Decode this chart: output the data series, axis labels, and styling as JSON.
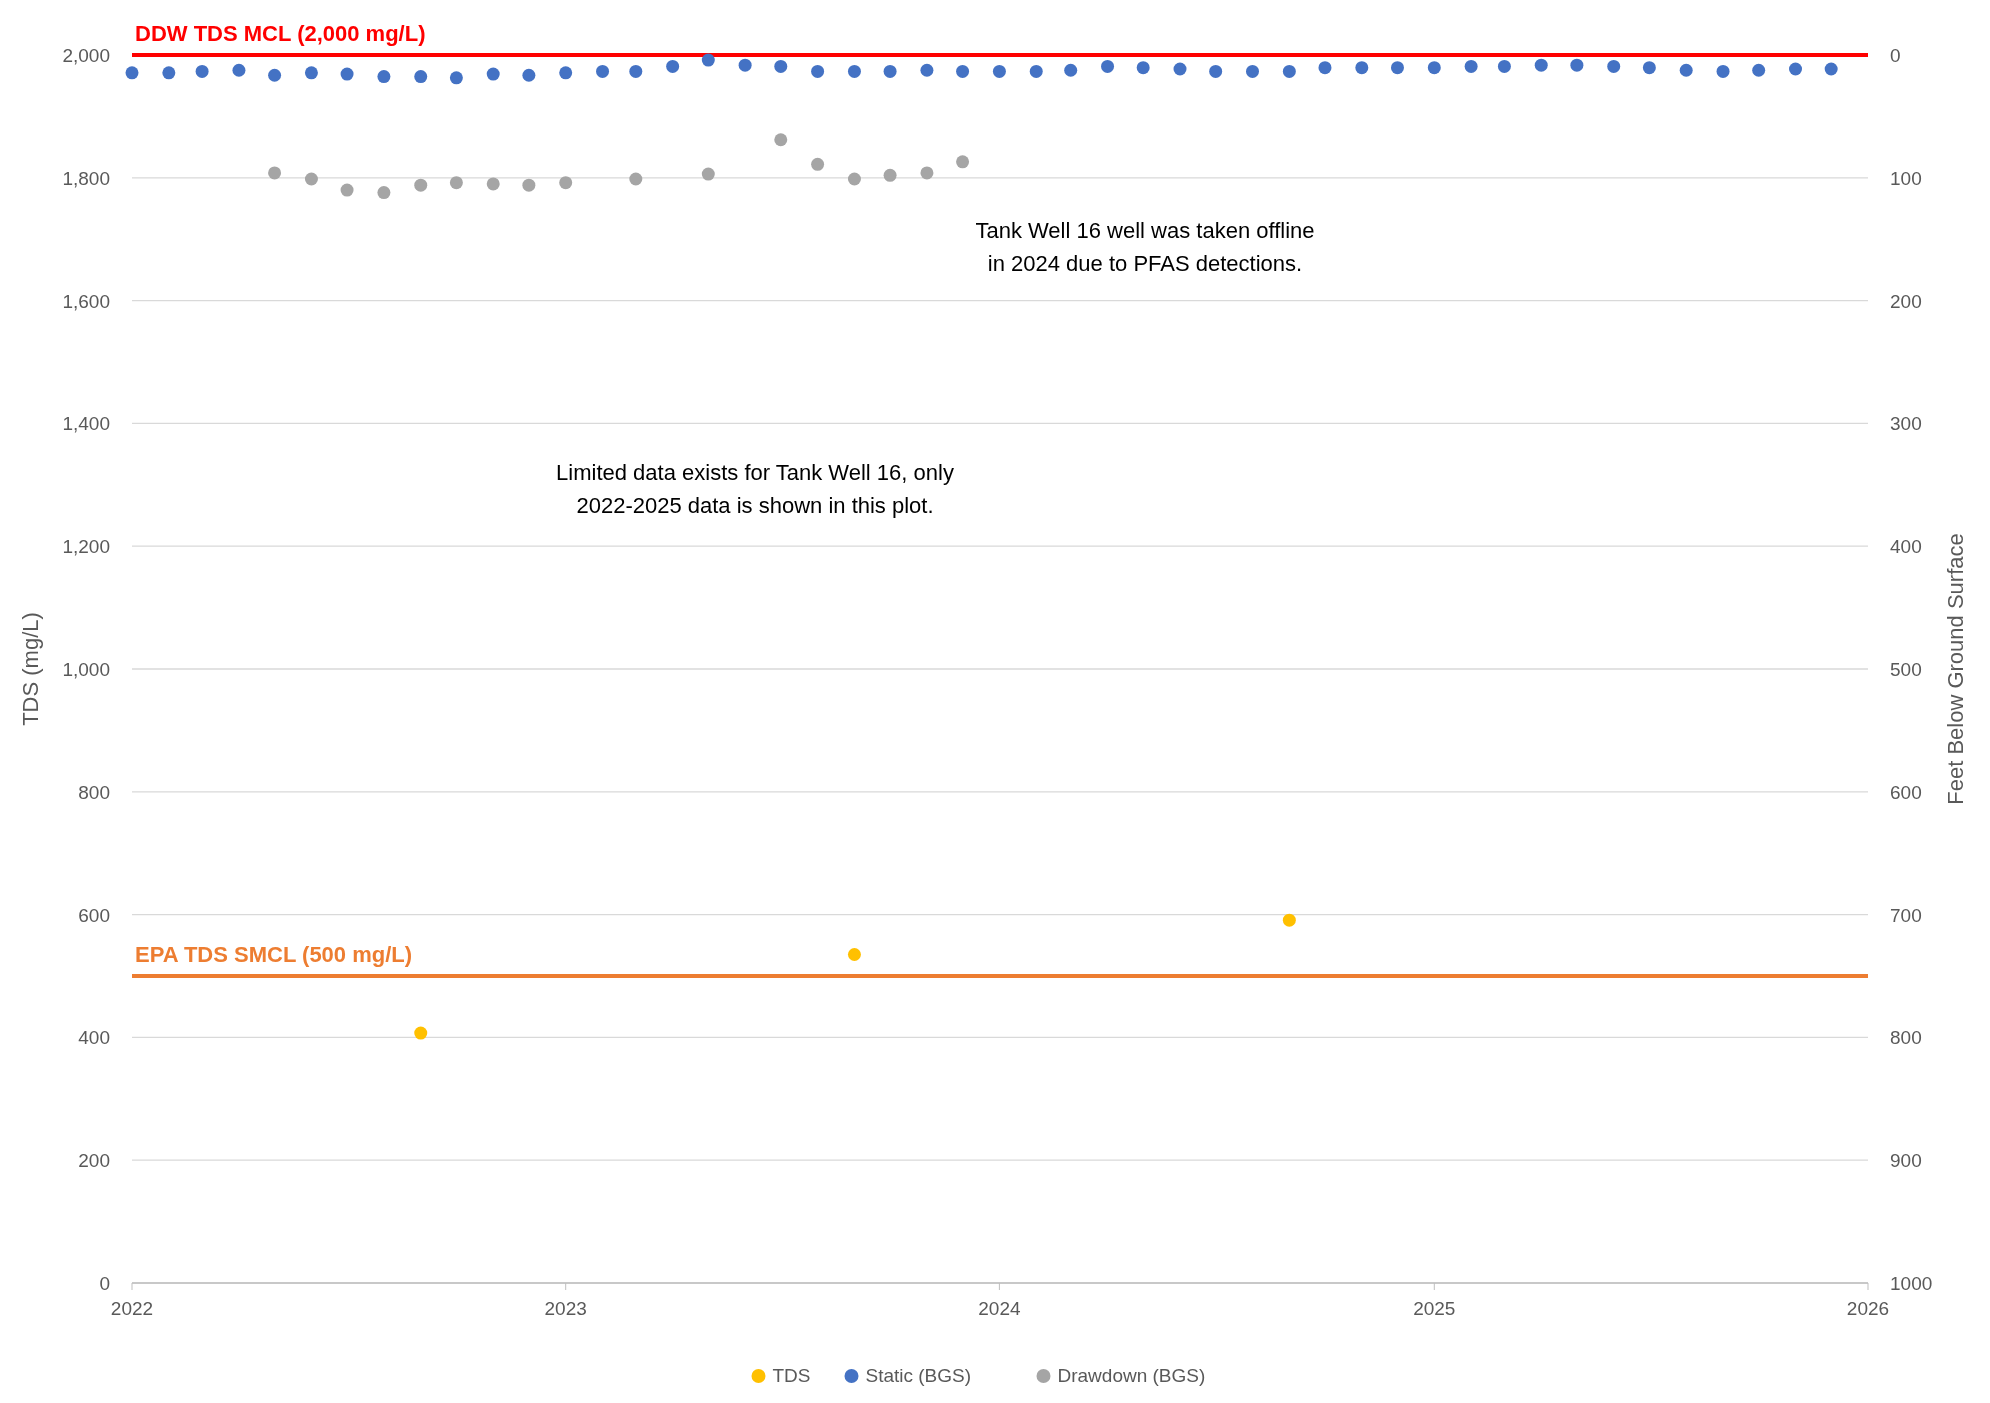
{
  "chart_data": {
    "type": "scatter",
    "ylabel": "TDS (mg/L)",
    "y2label": "Feet Below Ground Surface",
    "xlim": [
      "2022-01-01",
      "2026-01-01"
    ],
    "xticks": [
      {
        "value": "2022-01-01",
        "label": "2022"
      },
      {
        "value": "2023-01-01",
        "label": "2023"
      },
      {
        "value": "2024-01-01",
        "label": "2024"
      },
      {
        "value": "2025-01-01",
        "label": "2025"
      },
      {
        "value": "2026-01-01",
        "label": "2026"
      }
    ],
    "ylim": [
      0,
      2000
    ],
    "yticks": [
      0,
      200,
      400,
      600,
      800,
      {
        "value": 1000,
        "label": "1,000"
      },
      {
        "value": 1200,
        "label": "1,200"
      },
      {
        "value": 1400,
        "label": "1,400"
      },
      {
        "value": 1600,
        "label": "1,600"
      },
      {
        "value": 1800,
        "label": "1,800"
      },
      {
        "value": 2000,
        "label": "2,000"
      }
    ],
    "y2lim": [
      1000,
      0
    ],
    "y2ticks": [
      0,
      100,
      200,
      300,
      400,
      500,
      600,
      700,
      800,
      900,
      1000
    ],
    "grid": "y",
    "legend": "bottom",
    "marker": "circle",
    "series": [
      {
        "name": "TDS",
        "color": "#ffc000",
        "x": [
          "2022-09",
          "2023-09",
          "2024-09"
        ],
        "values": [
          407,
          535,
          591
        ]
      },
      {
        "name": "Static (BGS)",
        "color": "#4472c4",
        "axis": "y2",
        "x": [
          "2022-01",
          "2022-02",
          "2022-03",
          "2022-04",
          "2022-05",
          "2022-06",
          "2022-07",
          "2022-08",
          "2022-09",
          "2022-10",
          "2022-11",
          "2022-12",
          "2023-01",
          "2023-02",
          "2023-03",
          "2023-04",
          "2023-05",
          "2023-06",
          "2023-07",
          "2023-08",
          "2023-09",
          "2023-10",
          "2023-11",
          "2023-12",
          "2024-01",
          "2024-02",
          "2024-03",
          "2024-04",
          "2024-05",
          "2024-06",
          "2024-07",
          "2024-08",
          "2024-09",
          "2024-10",
          "2024-11",
          "2024-12",
          "2025-01",
          "2025-02",
          "2025-03",
          "2025-04",
          "2025-05",
          "2025-06",
          "2025-07",
          "2025-08",
          "2025-09",
          "2025-10",
          "2025-11",
          "2025-12"
        ],
        "values": [
          14.5,
          14.5,
          13.4,
          12.4,
          16.5,
          14.5,
          15.5,
          17.6,
          17.6,
          18.6,
          15.5,
          16.5,
          14.5,
          13.4,
          13.4,
          9.3,
          4.1,
          8.3,
          9.3,
          13.4,
          13.4,
          13.4,
          12.4,
          13.4,
          13.4,
          13.4,
          12.4,
          9.3,
          10.3,
          11.4,
          13.4,
          13.4,
          13.4,
          10.3,
          10.3,
          10.3,
          10.3,
          9.3,
          9.3,
          8.3,
          8.3,
          9.3,
          10.3,
          12.4,
          13.4,
          12.4,
          11.4,
          11.4
        ]
      },
      {
        "name": "Drawdown (BGS)",
        "color": "#a5a5a5",
        "axis": "y2",
        "x": [
          "2022-05",
          "2022-06",
          "2022-07",
          "2022-08",
          "2022-09",
          "2022-10",
          "2022-11",
          "2022-12",
          "2023-01",
          "2023-03",
          "2023-05",
          "2023-07",
          "2023-08",
          "2023-09",
          "2023-10",
          "2023-11",
          "2023-12"
        ],
        "values": [
          96,
          101,
          110,
          112,
          106,
          104,
          105,
          106,
          104,
          101,
          97,
          69,
          89,
          101,
          98,
          96,
          87
        ]
      }
    ],
    "ref_lines": [
      {
        "axis": "y",
        "value": 2000,
        "label": "DDW TDS MCL (2,000 mg/L)",
        "color": "#ff0000"
      },
      {
        "axis": "y",
        "value": 500,
        "label": "EPA TDS SMCL (500 mg/L)",
        "color": "#ed7d31"
      }
    ],
    "annotations": [
      "Tank Well 16 well was taken offline\nin 2024 due to PFAS detections.",
      "Limited data exists for Tank Well 16, only\n2022-2025 data is shown in this plot."
    ]
  }
}
